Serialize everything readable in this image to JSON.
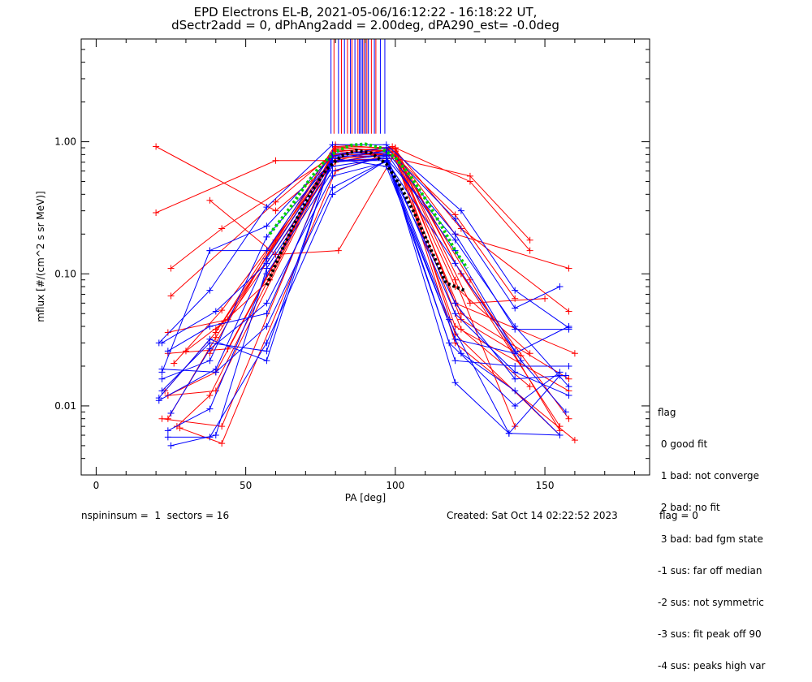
{
  "title_line1": "EPD Electrons EL-B, 2021-05-06/16:12:22 - 16:18:22 UT,",
  "title_line2": "dSectr2add = 0, dPhAng2add = 2.00deg, dPA290_est=  -0.0deg",
  "footer": {
    "left": "nspininsum =  1  sectors = 16",
    "right": "Created: Sat Oct 14 02:22:52 2023",
    "flag": "flag = 0"
  },
  "legend": {
    "title": "flag",
    "items": [
      " 0 good fit",
      " 1 bad: not converge",
      " 2 bad: no fit",
      " 3 bad: bad fgm state",
      "-1 sus: far off median",
      "-2 sus: not symmetric",
      "-3 sus: fit peak off 90",
      "-4 sus: peaks high var"
    ]
  },
  "colors": {
    "red": "#ff0000",
    "blue": "#0000ff",
    "green": "#00d000",
    "black": "#000000"
  },
  "chart_data": {
    "type": "line",
    "xlabel": "PA [deg]",
    "ylabel": "mflux [#/(cm^2 s sr MeV)]",
    "xlim": [
      -5,
      185
    ],
    "ylim": [
      0.003,
      6.0
    ],
    "yscale": "log",
    "x_ticks": [
      0,
      50,
      100,
      150
    ],
    "x_tick_labels": [
      "0",
      "50",
      "100",
      "150"
    ],
    "y_ticks": [
      0.01,
      0.1,
      1.0
    ],
    "y_tick_labels": [
      "0.01",
      "0.10",
      "1.00"
    ],
    "peak_markers": {
      "red": [
        79.5,
        82,
        84,
        85.5,
        87.5,
        89.5,
        90.5,
        92,
        93.5
      ],
      "blue": [
        78.5,
        81,
        83,
        85,
        86.5,
        88,
        88.5,
        89,
        90,
        91,
        93,
        95,
        96.5
      ]
    },
    "series": [
      {
        "color": "red",
        "x": [
          20,
          60,
          80,
          100,
          125,
          145
        ],
        "y": [
          0.92,
          0.3,
          0.72,
          0.75,
          0.55,
          0.18
        ]
      },
      {
        "color": "red",
        "x": [
          20,
          60,
          80,
          100,
          125,
          145
        ],
        "y": [
          0.29,
          0.72,
          0.72,
          0.9,
          0.5,
          0.15
        ]
      },
      {
        "color": "red",
        "x": [
          25,
          42,
          80,
          100,
          125,
          155
        ],
        "y": [
          0.11,
          0.22,
          0.8,
          0.8,
          0.09,
          0.0065
        ]
      },
      {
        "color": "red",
        "x": [
          25,
          60,
          80,
          100,
          120,
          140
        ],
        "y": [
          0.068,
          0.35,
          0.85,
          0.78,
          0.28,
          0.065
        ]
      },
      {
        "color": "red",
        "x": [
          38,
          60,
          81,
          100,
          120,
          158
        ],
        "y": [
          0.36,
          0.14,
          0.15,
          0.82,
          0.2,
          0.11
        ]
      },
      {
        "color": "red",
        "x": [
          40,
          58,
          80,
          100,
          120,
          140
        ],
        "y": [
          0.038,
          0.09,
          0.9,
          0.85,
          0.09,
          0.007
        ]
      },
      {
        "color": "red",
        "x": [
          22,
          42,
          80,
          100,
          122,
          155
        ],
        "y": [
          0.008,
          0.007,
          0.85,
          0.9,
          0.1,
          0.007
        ]
      },
      {
        "color": "red",
        "x": [
          24,
          40,
          79,
          99,
          122,
          158
        ],
        "y": [
          0.012,
          0.018,
          0.78,
          0.92,
          0.22,
          0.052
        ]
      },
      {
        "color": "red",
        "x": [
          28,
          42,
          80,
          100,
          125,
          150
        ],
        "y": [
          0.0068,
          0.0052,
          0.6,
          0.85,
          0.06,
          0.065
        ]
      },
      {
        "color": "red",
        "x": [
          24,
          44,
          80,
          100,
          120,
          145
        ],
        "y": [
          0.025,
          0.027,
          0.88,
          0.78,
          0.08,
          0.025
        ]
      },
      {
        "color": "red",
        "x": [
          23,
          40,
          80,
          100,
          120,
          160
        ],
        "y": [
          0.013,
          0.036,
          0.95,
          0.88,
          0.06,
          0.025
        ]
      },
      {
        "color": "red",
        "x": [
          26,
          42,
          80,
          100,
          122,
          158
        ],
        "y": [
          0.021,
          0.053,
          0.75,
          0.8,
          0.05,
          0.016
        ]
      },
      {
        "color": "red",
        "x": [
          24,
          44,
          80,
          100,
          122,
          158
        ],
        "y": [
          0.036,
          0.045,
          0.7,
          0.85,
          0.1,
          0.008
        ]
      },
      {
        "color": "red",
        "x": [
          27,
          38,
          80,
          100,
          122,
          142
        ],
        "y": [
          0.007,
          0.012,
          0.92,
          0.9,
          0.045,
          0.024
        ]
      },
      {
        "color": "red",
        "x": [
          24,
          40,
          80,
          100,
          122,
          145
        ],
        "y": [
          0.012,
          0.013,
          0.85,
          0.78,
          0.038,
          0.014
        ]
      },
      {
        "color": "red",
        "x": [
          30,
          42,
          80,
          100,
          120,
          155
        ],
        "y": [
          0.026,
          0.042,
          0.8,
          0.88,
          0.035,
          0.006
        ]
      },
      {
        "color": "red",
        "x": [
          38,
          60,
          78,
          100,
          120,
          158
        ],
        "y": [
          0.025,
          0.18,
          0.7,
          0.75,
          0.04,
          0.013
        ]
      },
      {
        "color": "red",
        "x": [
          24,
          40,
          80,
          100,
          120,
          160
        ],
        "y": [
          0.008,
          0.033,
          0.92,
          0.82,
          0.03,
          0.0055
        ]
      },
      {
        "color": "blue",
        "x": [
          21,
          38,
          57,
          79,
          97,
          122,
          140,
          158
        ],
        "y": [
          0.03,
          0.075,
          0.32,
          0.95,
          0.95,
          0.3,
          0.075,
          0.039
        ]
      },
      {
        "color": "blue",
        "x": [
          22,
          38,
          57,
          79,
          97,
          120,
          140,
          155
        ],
        "y": [
          0.018,
          0.15,
          0.23,
          0.78,
          0.9,
          0.26,
          0.055,
          0.08
        ]
      },
      {
        "color": "blue",
        "x": [
          21,
          40,
          57,
          79,
          97,
          120,
          140,
          158
        ],
        "y": [
          0.011,
          0.019,
          0.13,
          0.75,
          0.85,
          0.2,
          0.038,
          0.038
        ]
      },
      {
        "color": "blue",
        "x": [
          22,
          40,
          57,
          79,
          97,
          120,
          138,
          155
        ],
        "y": [
          0.03,
          0.052,
          0.12,
          0.7,
          0.8,
          0.015,
          0.0062,
          0.017
        ]
      },
      {
        "color": "blue",
        "x": [
          25,
          40,
          57,
          79,
          97,
          118,
          138,
          155
        ],
        "y": [
          0.005,
          0.006,
          0.11,
          0.65,
          0.75,
          0.045,
          0.0062,
          0.006
        ]
      },
      {
        "color": "blue",
        "x": [
          24,
          38,
          57,
          79,
          97,
          120,
          140,
          158
        ],
        "y": [
          0.0065,
          0.0095,
          0.1,
          0.6,
          0.78,
          0.05,
          0.018,
          0.012
        ]
      },
      {
        "color": "blue",
        "x": [
          25,
          38,
          57,
          79,
          97,
          120,
          140,
          157
        ],
        "y": [
          0.0088,
          0.027,
          0.06,
          0.55,
          0.7,
          0.06,
          0.016,
          0.017
        ]
      },
      {
        "color": "blue",
        "x": [
          22,
          40,
          57,
          79,
          97,
          118,
          140,
          155
        ],
        "y": [
          0.019,
          0.018,
          0.04,
          0.45,
          0.72,
          0.03,
          0.01,
          0.018
        ]
      },
      {
        "color": "blue",
        "x": [
          24,
          38,
          57,
          79,
          97,
          120,
          140,
          158
        ],
        "y": [
          0.0058,
          0.0058,
          0.03,
          0.4,
          0.72,
          0.032,
          0.025,
          0.04
        ]
      },
      {
        "color": "blue",
        "x": [
          22,
          38,
          57,
          79,
          97,
          122,
          140,
          155
        ],
        "y": [
          0.013,
          0.03,
          0.026,
          0.75,
          0.65,
          0.025,
          0.013,
          0.006
        ]
      },
      {
        "color": "blue",
        "x": [
          21,
          38,
          57,
          79,
          97,
          120,
          140,
          158
        ],
        "y": [
          0.0115,
          0.032,
          0.022,
          0.78,
          0.78,
          0.022,
          0.02,
          0.02
        ]
      },
      {
        "color": "blue",
        "x": [
          22,
          38,
          57,
          79,
          97,
          120,
          142,
          157
        ],
        "y": [
          0.016,
          0.022,
          0.19,
          0.72,
          0.72,
          0.12,
          0.022,
          0.009
        ]
      },
      {
        "color": "blue",
        "x": [
          38,
          57,
          79,
          97,
          120,
          140
        ],
        "y": [
          0.15,
          0.15,
          0.82,
          0.82,
          0.15,
          0.026
        ]
      },
      {
        "color": "blue",
        "x": [
          24,
          38,
          57,
          79,
          97,
          120,
          140,
          158
        ],
        "y": [
          0.026,
          0.04,
          0.05,
          0.7,
          0.75,
          0.18,
          0.04,
          0.014
        ]
      },
      {
        "color": "green",
        "x": [
          58,
          65,
          70,
          75,
          80,
          85,
          90,
          95,
          100,
          105,
          110,
          115,
          120,
          124
        ],
        "y": [
          0.2,
          0.32,
          0.47,
          0.66,
          0.84,
          0.94,
          0.96,
          0.9,
          0.76,
          0.55,
          0.37,
          0.24,
          0.15,
          0.11
        ],
        "style": "dotted"
      },
      {
        "color": "black",
        "x": [
          57,
          62,
          67,
          72,
          77,
          82,
          87,
          92,
          97,
          102,
          107,
          112,
          117,
          123
        ],
        "y": [
          0.082,
          0.15,
          0.26,
          0.42,
          0.62,
          0.78,
          0.86,
          0.82,
          0.68,
          0.45,
          0.27,
          0.15,
          0.085,
          0.075
        ],
        "style": "dotted"
      }
    ]
  }
}
